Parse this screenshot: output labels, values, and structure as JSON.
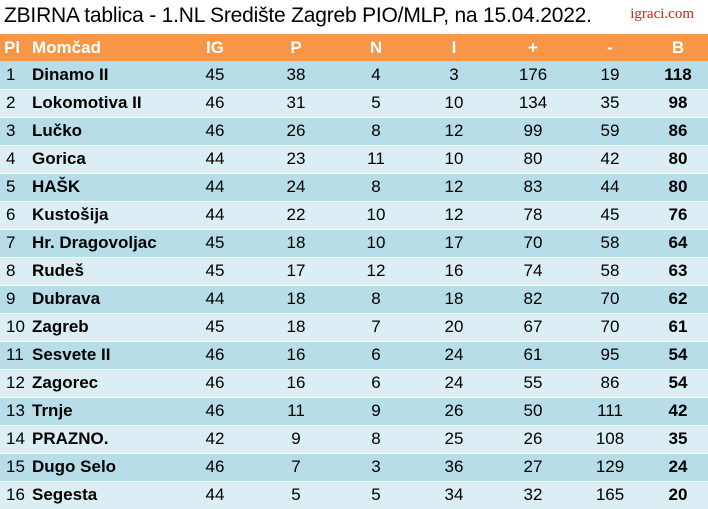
{
  "header": {
    "title": "ZBIRNA tablica - 1.NL Središte Zagreb PIO/MLP, na 15.04.2022.",
    "logo_text": "igraci.com"
  },
  "columns": {
    "pl": "Pl",
    "team": "Momčad",
    "ig": "IG",
    "p": "P",
    "n": "N",
    "i": "I",
    "plus": "+",
    "minus": "-",
    "b": "B"
  },
  "rows": [
    {
      "pl": "1",
      "team": "Dinamo II",
      "ig": "45",
      "p": "38",
      "n": "4",
      "i": "3",
      "plus": "176",
      "minus": "19",
      "b": "118"
    },
    {
      "pl": "2",
      "team": "Lokomotiva II",
      "ig": "46",
      "p": "31",
      "n": "5",
      "i": "10",
      "plus": "134",
      "minus": "35",
      "b": "98"
    },
    {
      "pl": "3",
      "team": "Lučko",
      "ig": "46",
      "p": "26",
      "n": "8",
      "i": "12",
      "plus": "99",
      "minus": "59",
      "b": "86"
    },
    {
      "pl": "4",
      "team": "Gorica",
      "ig": "44",
      "p": "23",
      "n": "11",
      "i": "10",
      "plus": "80",
      "minus": "42",
      "b": "80"
    },
    {
      "pl": "5",
      "team": "HAŠK",
      "ig": "44",
      "p": "24",
      "n": "8",
      "i": "12",
      "plus": "83",
      "minus": "44",
      "b": "80"
    },
    {
      "pl": "6",
      "team": "Kustošija",
      "ig": "44",
      "p": "22",
      "n": "10",
      "i": "12",
      "plus": "78",
      "minus": "45",
      "b": "76"
    },
    {
      "pl": "7",
      "team": "Hr. Dragovoljac",
      "ig": "45",
      "p": "18",
      "n": "10",
      "i": "17",
      "plus": "70",
      "minus": "58",
      "b": "64"
    },
    {
      "pl": "8",
      "team": "Rudeš",
      "ig": "45",
      "p": "17",
      "n": "12",
      "i": "16",
      "plus": "74",
      "minus": "58",
      "b": "63"
    },
    {
      "pl": "9",
      "team": "Dubrava",
      "ig": "44",
      "p": "18",
      "n": "8",
      "i": "18",
      "plus": "82",
      "minus": "70",
      "b": "62"
    },
    {
      "pl": "10",
      "team": "Zagreb",
      "ig": "45",
      "p": "18",
      "n": "7",
      "i": "20",
      "plus": "67",
      "minus": "70",
      "b": "61"
    },
    {
      "pl": "11",
      "team": "Sesvete II",
      "ig": "46",
      "p": "16",
      "n": "6",
      "i": "24",
      "plus": "61",
      "minus": "95",
      "b": "54"
    },
    {
      "pl": "12",
      "team": "Zagorec",
      "ig": "46",
      "p": "16",
      "n": "6",
      "i": "24",
      "plus": "55",
      "minus": "86",
      "b": "54"
    },
    {
      "pl": "13",
      "team": "Trnje",
      "ig": "46",
      "p": "11",
      "n": "9",
      "i": "26",
      "plus": "50",
      "minus": "111",
      "b": "42"
    },
    {
      "pl": "14",
      "team": "PRAZNO.",
      "ig": "42",
      "p": "9",
      "n": "8",
      "i": "25",
      "plus": "26",
      "minus": "108",
      "b": "35"
    },
    {
      "pl": "15",
      "team": "Dugo Selo",
      "ig": "46",
      "p": "7",
      "n": "3",
      "i": "36",
      "plus": "27",
      "minus": "129",
      "b": "24"
    },
    {
      "pl": "16",
      "team": "Segesta",
      "ig": "44",
      "p": "5",
      "n": "5",
      "i": "34",
      "plus": "32",
      "minus": "165",
      "b": "20"
    }
  ],
  "colors": {
    "header_bg": "#f79646",
    "row_odd": "#b7dde8",
    "row_even": "#daeef3",
    "logo": "#d62020"
  }
}
